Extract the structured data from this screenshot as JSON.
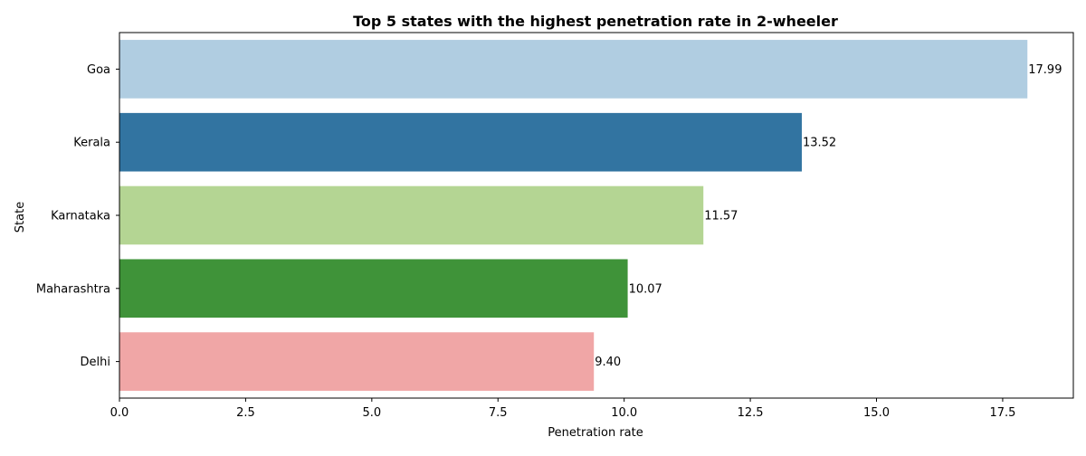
{
  "chart_data": {
    "type": "bar",
    "orientation": "horizontal",
    "title": "Top 5 states with the highest penetration rate in 2-wheeler",
    "xlabel": "Penetration rate",
    "ylabel": "State",
    "categories": [
      "Goa",
      "Kerala",
      "Karnataka",
      "Maharashtra",
      "Delhi"
    ],
    "values": [
      17.99,
      13.52,
      11.57,
      10.07,
      9.4
    ],
    "value_labels": [
      "17.99",
      "13.52",
      "11.57",
      "10.07",
      "9.40"
    ],
    "colors": [
      "#b0cde1",
      "#3274a1",
      "#b4d593",
      "#3f9339",
      "#f0a6a6"
    ],
    "xlim": [
      0,
      18.9
    ],
    "xticks": [
      0.0,
      2.5,
      5.0,
      7.5,
      10.0,
      12.5,
      15.0,
      17.5
    ],
    "xtick_labels": [
      "0.0",
      "2.5",
      "5.0",
      "7.5",
      "10.0",
      "12.5",
      "15.0",
      "17.5"
    ],
    "grid": false,
    "legend": "none"
  }
}
